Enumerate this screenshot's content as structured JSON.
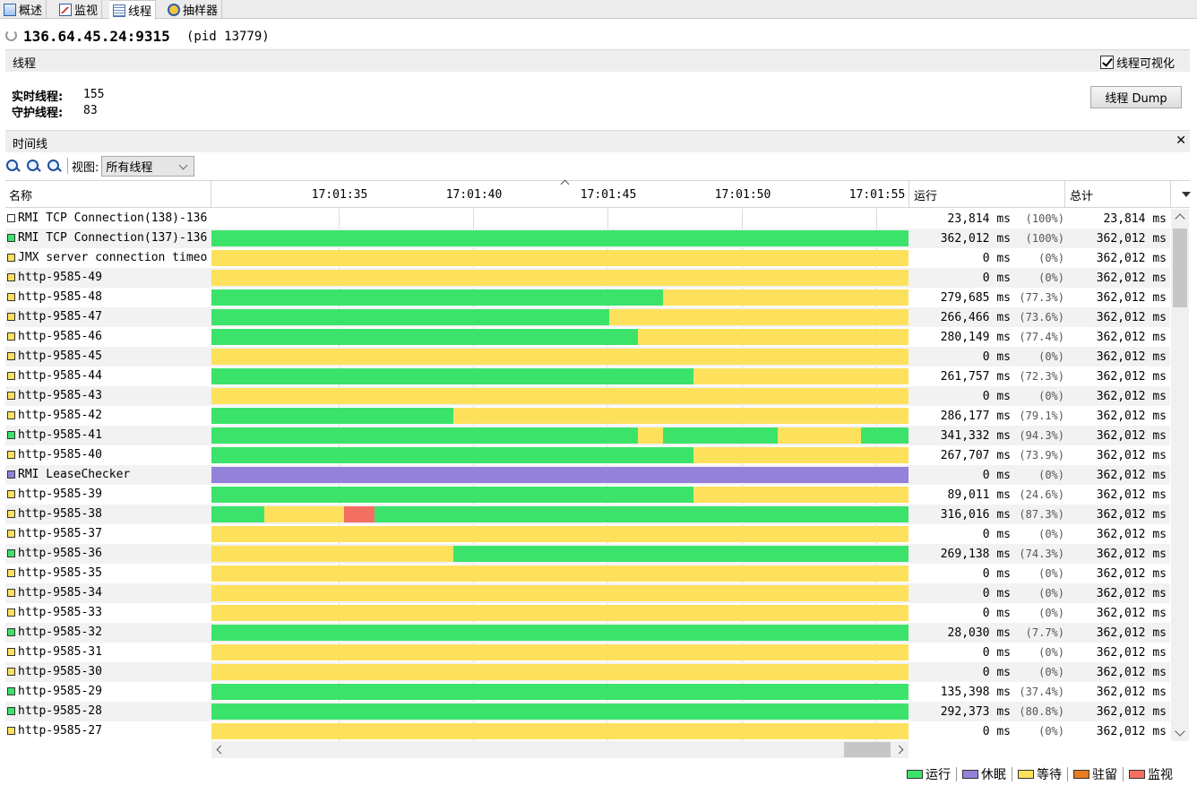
{
  "tabs": [
    {
      "label": "概述",
      "icon": "overview-icon"
    },
    {
      "label": "监视",
      "icon": "monitor-icon"
    },
    {
      "label": "线程",
      "icon": "threads-icon",
      "active": true
    },
    {
      "label": "抽样器",
      "icon": "sampler-icon"
    }
  ],
  "title": {
    "host": "136.64.45.24:9315",
    "pid": "(pid 13779)"
  },
  "threads_section": {
    "label": "线程",
    "visualize_label": "线程可视化",
    "visualize_checked": true,
    "live_label": "实时线程:",
    "live_value": "155",
    "daemon_label": "守护线程:",
    "daemon_value": "83",
    "dump_button": "线程 Dump"
  },
  "timeline": {
    "label": "时间线",
    "view_label": "视图:",
    "view_value": "所有线程",
    "columns": {
      "name": "名称",
      "running": "运行",
      "total": "总计"
    },
    "ticks": [
      "17:01:35",
      "17:01:40",
      "17:01:45",
      "17:01:50",
      "17:01:55"
    ]
  },
  "colors": {
    "running": "#3ce36b",
    "sleeping": "#9481d9",
    "waiting": "#fde15c",
    "parked": "#e87a1f",
    "monitor": "#f56e62",
    "none": "#ffffff"
  },
  "legend": [
    {
      "label": "运行",
      "state": "running"
    },
    {
      "label": "休眠",
      "state": "sleeping"
    },
    {
      "label": "等待",
      "state": "waiting"
    },
    {
      "label": "驻留",
      "state": "parked"
    },
    {
      "label": "监视",
      "state": "monitor"
    }
  ],
  "rows": [
    {
      "name": "RMI TCP Connection(138)-136",
      "state": "none",
      "running": "23,814 ms",
      "pct": "(100%)",
      "total": "23,814 ms",
      "segments": []
    },
    {
      "name": "RMI TCP Connection(137)-136",
      "state": "running",
      "running": "362,012 ms",
      "pct": "(100%)",
      "total": "362,012 ms",
      "segments": [
        [
          "running",
          0,
          1
        ]
      ]
    },
    {
      "name": "JMX server connection timeo",
      "state": "waiting",
      "running": "0 ms",
      "pct": "(0%)",
      "total": "362,012 ms",
      "segments": [
        [
          "waiting",
          0,
          1
        ]
      ]
    },
    {
      "name": "http-9585-49",
      "state": "waiting",
      "running": "0 ms",
      "pct": "(0%)",
      "total": "362,012 ms",
      "segments": [
        [
          "waiting",
          0,
          1
        ]
      ]
    },
    {
      "name": "http-9585-48",
      "state": "waiting",
      "running": "279,685 ms",
      "pct": "(77.3%)",
      "total": "362,012 ms",
      "segments": [
        [
          "running",
          0,
          0.648
        ],
        [
          "waiting",
          0.648,
          1
        ]
      ]
    },
    {
      "name": "http-9585-47",
      "state": "waiting",
      "running": "266,466 ms",
      "pct": "(73.6%)",
      "total": "362,012 ms",
      "segments": [
        [
          "running",
          0,
          0.571
        ],
        [
          "waiting",
          0.571,
          1
        ]
      ]
    },
    {
      "name": "http-9585-46",
      "state": "waiting",
      "running": "280,149 ms",
      "pct": "(77.4%)",
      "total": "362,012 ms",
      "segments": [
        [
          "running",
          0,
          0.612
        ],
        [
          "waiting",
          0.612,
          1
        ]
      ]
    },
    {
      "name": "http-9585-45",
      "state": "waiting",
      "running": "0 ms",
      "pct": "(0%)",
      "total": "362,012 ms",
      "segments": [
        [
          "waiting",
          0,
          1
        ]
      ]
    },
    {
      "name": "http-9585-44",
      "state": "waiting",
      "running": "261,757 ms",
      "pct": "(72.3%)",
      "total": "362,012 ms",
      "segments": [
        [
          "running",
          0,
          0.692
        ],
        [
          "waiting",
          0.692,
          1
        ]
      ]
    },
    {
      "name": "http-9585-43",
      "state": "waiting",
      "running": "0 ms",
      "pct": "(0%)",
      "total": "362,012 ms",
      "segments": [
        [
          "waiting",
          0,
          1
        ]
      ]
    },
    {
      "name": "http-9585-42",
      "state": "waiting",
      "running": "286,177 ms",
      "pct": "(79.1%)",
      "total": "362,012 ms",
      "segments": [
        [
          "running",
          0,
          0.347
        ],
        [
          "waiting",
          0.347,
          1
        ]
      ]
    },
    {
      "name": "http-9585-41",
      "state": "running",
      "running": "341,332 ms",
      "pct": "(94.3%)",
      "total": "362,012 ms",
      "segments": [
        [
          "running",
          0,
          0.612
        ],
        [
          "waiting",
          0.612,
          0.648
        ],
        [
          "running",
          0.648,
          0.812
        ],
        [
          "waiting",
          0.812,
          0.932
        ],
        [
          "running",
          0.932,
          1
        ]
      ]
    },
    {
      "name": "http-9585-40",
      "state": "waiting",
      "running": "267,707 ms",
      "pct": "(73.9%)",
      "total": "362,012 ms",
      "segments": [
        [
          "running",
          0,
          0.692
        ],
        [
          "waiting",
          0.692,
          1
        ]
      ]
    },
    {
      "name": "RMI LeaseChecker",
      "state": "sleeping",
      "running": "0 ms",
      "pct": "(0%)",
      "total": "362,012 ms",
      "segments": [
        [
          "sleeping",
          0,
          1
        ]
      ]
    },
    {
      "name": "http-9585-39",
      "state": "waiting",
      "running": "89,011 ms",
      "pct": "(24.6%)",
      "total": "362,012 ms",
      "segments": [
        [
          "running",
          0,
          0.692
        ],
        [
          "waiting",
          0.692,
          1
        ]
      ]
    },
    {
      "name": "http-9585-38",
      "state": "waiting",
      "running": "316,016 ms",
      "pct": "(87.3%)",
      "total": "362,012 ms",
      "segments": [
        [
          "running",
          0,
          0.076
        ],
        [
          "waiting",
          0.076,
          0.19
        ],
        [
          "monitor",
          0.19,
          0.234
        ],
        [
          "running",
          0.234,
          1
        ]
      ]
    },
    {
      "name": "http-9585-37",
      "state": "waiting",
      "running": "0 ms",
      "pct": "(0%)",
      "total": "362,012 ms",
      "segments": [
        [
          "waiting",
          0,
          1
        ]
      ]
    },
    {
      "name": "http-9585-36",
      "state": "running",
      "running": "269,138 ms",
      "pct": "(74.3%)",
      "total": "362,012 ms",
      "segments": [
        [
          "waiting",
          0,
          0.347
        ],
        [
          "running",
          0.347,
          1
        ]
      ]
    },
    {
      "name": "http-9585-35",
      "state": "waiting",
      "running": "0 ms",
      "pct": "(0%)",
      "total": "362,012 ms",
      "segments": [
        [
          "waiting",
          0,
          1
        ]
      ]
    },
    {
      "name": "http-9585-34",
      "state": "waiting",
      "running": "0 ms",
      "pct": "(0%)",
      "total": "362,012 ms",
      "segments": [
        [
          "waiting",
          0,
          1
        ]
      ]
    },
    {
      "name": "http-9585-33",
      "state": "waiting",
      "running": "0 ms",
      "pct": "(0%)",
      "total": "362,012 ms",
      "segments": [
        [
          "waiting",
          0,
          1
        ]
      ]
    },
    {
      "name": "http-9585-32",
      "state": "running",
      "running": "28,030 ms",
      "pct": "(7.7%)",
      "total": "362,012 ms",
      "segments": [
        [
          "running",
          0,
          1
        ]
      ]
    },
    {
      "name": "http-9585-31",
      "state": "waiting",
      "running": "0 ms",
      "pct": "(0%)",
      "total": "362,012 ms",
      "segments": [
        [
          "waiting",
          0,
          1
        ]
      ]
    },
    {
      "name": "http-9585-30",
      "state": "waiting",
      "running": "0 ms",
      "pct": "(0%)",
      "total": "362,012 ms",
      "segments": [
        [
          "waiting",
          0,
          1
        ]
      ]
    },
    {
      "name": "http-9585-29",
      "state": "running",
      "running": "135,398 ms",
      "pct": "(37.4%)",
      "total": "362,012 ms",
      "segments": [
        [
          "running",
          0,
          1
        ]
      ]
    },
    {
      "name": "http-9585-28",
      "state": "running",
      "running": "292,373 ms",
      "pct": "(80.8%)",
      "total": "362,012 ms",
      "segments": [
        [
          "running",
          0,
          1
        ]
      ]
    },
    {
      "name": "http-9585-27",
      "state": "waiting",
      "running": "0 ms",
      "pct": "(0%)",
      "total": "362,012 ms",
      "segments": [
        [
          "waiting",
          0,
          1
        ]
      ]
    }
  ]
}
